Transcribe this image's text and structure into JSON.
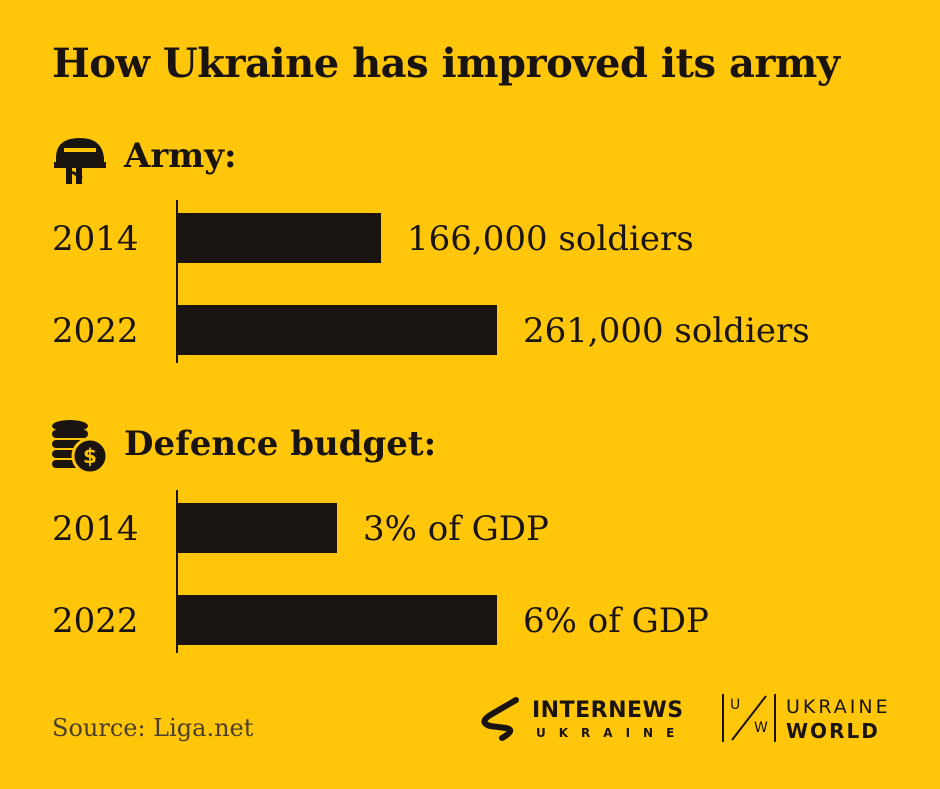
{
  "title": "How Ukraine has improved its army",
  "sections": [
    {
      "heading": "Army:",
      "icon": "helmet-icon"
    },
    {
      "heading": "Defence budget:",
      "icon": "coins-dollar-icon"
    }
  ],
  "chart_data": [
    {
      "type": "bar",
      "orientation": "horizontal",
      "title": "Army:",
      "categories": [
        "2014",
        "2022"
      ],
      "values": [
        166000,
        261000
      ],
      "data_labels": [
        "166,000 soldiers",
        "261,000 soldiers"
      ],
      "unit": "soldiers",
      "bar_color": "#1A1410"
    },
    {
      "type": "bar",
      "orientation": "horizontal",
      "title": "Defence budget:",
      "categories": [
        "2014",
        "2022"
      ],
      "values": [
        3,
        6
      ],
      "data_labels": [
        "3% of GDP",
        "6% of GDP"
      ],
      "unit": "% of GDP",
      "bar_color": "#1A1410"
    }
  ],
  "source": "Source: Liga.net",
  "logos": {
    "internews": {
      "line1": "INTERNEWS",
      "line2": "UKRAINE"
    },
    "ukraineworld": {
      "line1": "UKRAINE",
      "line2": "WORLD",
      "mark_left": "U",
      "mark_right": "W"
    }
  },
  "colors": {
    "background": "#FFC60A",
    "ink": "#1A1410"
  }
}
